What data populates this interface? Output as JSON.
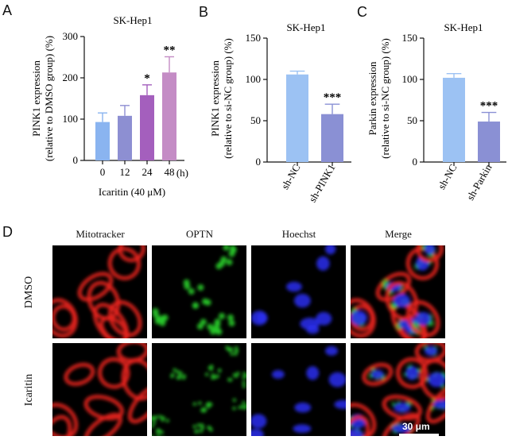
{
  "panels": {
    "A": "A",
    "B": "B",
    "C": "C",
    "D": "D"
  },
  "chart_data": [
    {
      "type": "bar",
      "panel": "A",
      "title": "SK-Hep1",
      "ylabel": "PINK1 expression",
      "ylabel2": "(relative to DMSO group) (%)",
      "xlabel": "Icaritin (40 μM)",
      "x_unit": "(h)",
      "categories": [
        "0",
        "12",
        "24",
        "48"
      ],
      "values": [
        93,
        108,
        158,
        213
      ],
      "errors": [
        22,
        25,
        25,
        38
      ],
      "significance": [
        "",
        "",
        "*",
        "**"
      ],
      "colors": [
        "#8ab4f0",
        "#8d8fd2",
        "#a45fbd",
        "#c48cc5"
      ],
      "ylim": [
        0,
        300
      ],
      "yticks": [
        "0",
        "100",
        "200",
        "300"
      ]
    },
    {
      "type": "bar",
      "panel": "B",
      "title": "SK-Hep1",
      "ylabel": "PINK1 expression",
      "ylabel2": "(relative to si-NC group) (%)",
      "categories": [
        "sh-NC",
        "sh-PINK1"
      ],
      "values": [
        106,
        58
      ],
      "errors": [
        4,
        12
      ],
      "significance": [
        "",
        "***"
      ],
      "colors": [
        "#9cc2f3",
        "#8a90d4"
      ],
      "ylim": [
        0,
        150
      ],
      "yticks": [
        "0",
        "50",
        "100",
        "150"
      ]
    },
    {
      "type": "bar",
      "panel": "C",
      "title": "SK-Hep1",
      "ylabel": "Parkin expression",
      "ylabel2": "(relative to si-NC group) (%)",
      "categories": [
        "sh-NC",
        "sh-Parkin"
      ],
      "values": [
        102,
        49
      ],
      "errors": [
        5,
        11
      ],
      "significance": [
        "",
        "***"
      ],
      "colors": [
        "#9cc2f3",
        "#8a90d4"
      ],
      "ylim": [
        0,
        150
      ],
      "yticks": [
        "0",
        "50",
        "100",
        "150"
      ]
    }
  ],
  "microscopy": {
    "columns": [
      "Mitotracker",
      "OPTN",
      "Hoechst",
      "Merge"
    ],
    "rows": [
      "DMSO",
      "Icaritin"
    ],
    "scale_bar": "30 μm",
    "channel_colors": [
      "#e8221c",
      "#27c92a",
      "#2a2ff0",
      "merge"
    ]
  }
}
